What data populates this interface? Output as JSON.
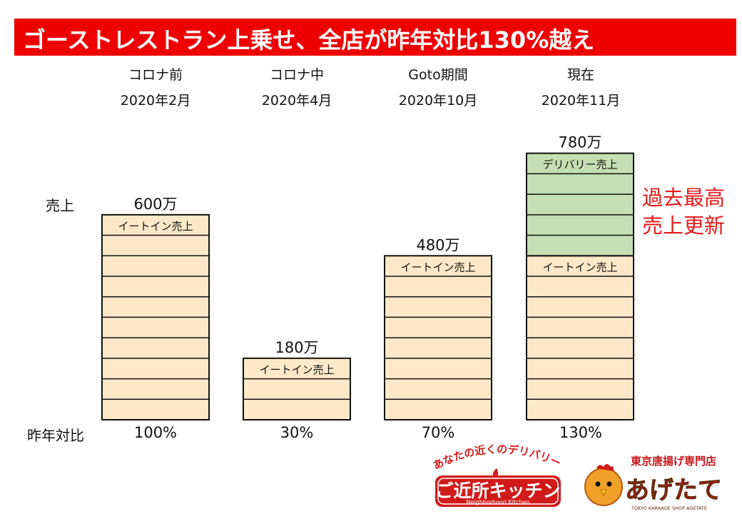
{
  "banner": {
    "title": "ゴーストレストラン上乗せ、全店が昨年対比130%越え"
  },
  "labels": {
    "sales": "売上",
    "yoy": "昨年対比"
  },
  "note": {
    "line1": "過去最高",
    "line2": "売上更新"
  },
  "colors": {
    "banner": "#ee0000",
    "eat_in": "#fde9c7",
    "delivery": "#c4dfb3",
    "note": "#e41c1c",
    "border": "#111111"
  },
  "chart_data": {
    "type": "bar",
    "unit": "万",
    "categories": [
      {
        "phase": "コロナ前",
        "date": "2020年2月"
      },
      {
        "phase": "コロナ中",
        "date": "2020年4月"
      },
      {
        "phase": "Goto期間",
        "date": "2020年10月"
      },
      {
        "phase": "現在",
        "date": "2020年11月"
      }
    ],
    "series": [
      {
        "name": "イートイン売上",
        "values": [
          600,
          180,
          480,
          480
        ]
      },
      {
        "name": "デリバリー売上",
        "values": [
          0,
          0,
          0,
          300
        ]
      }
    ],
    "totals": [
      "600万",
      "180万",
      "480万",
      "780万"
    ],
    "yoy": [
      "100%",
      "30%",
      "70%",
      "130%"
    ],
    "segment_size": 60
  },
  "logos": {
    "kinjo": {
      "arc_text": "あなたの近くのデリバリー",
      "main": "ご近所キッチン",
      "sub": "Neighborhood Kitchen"
    },
    "agetate": {
      "top": "東京唐揚げ専門店",
      "main": "あげたて",
      "sub": "TOKYO KARAAGE SHOP AGETATE"
    }
  }
}
